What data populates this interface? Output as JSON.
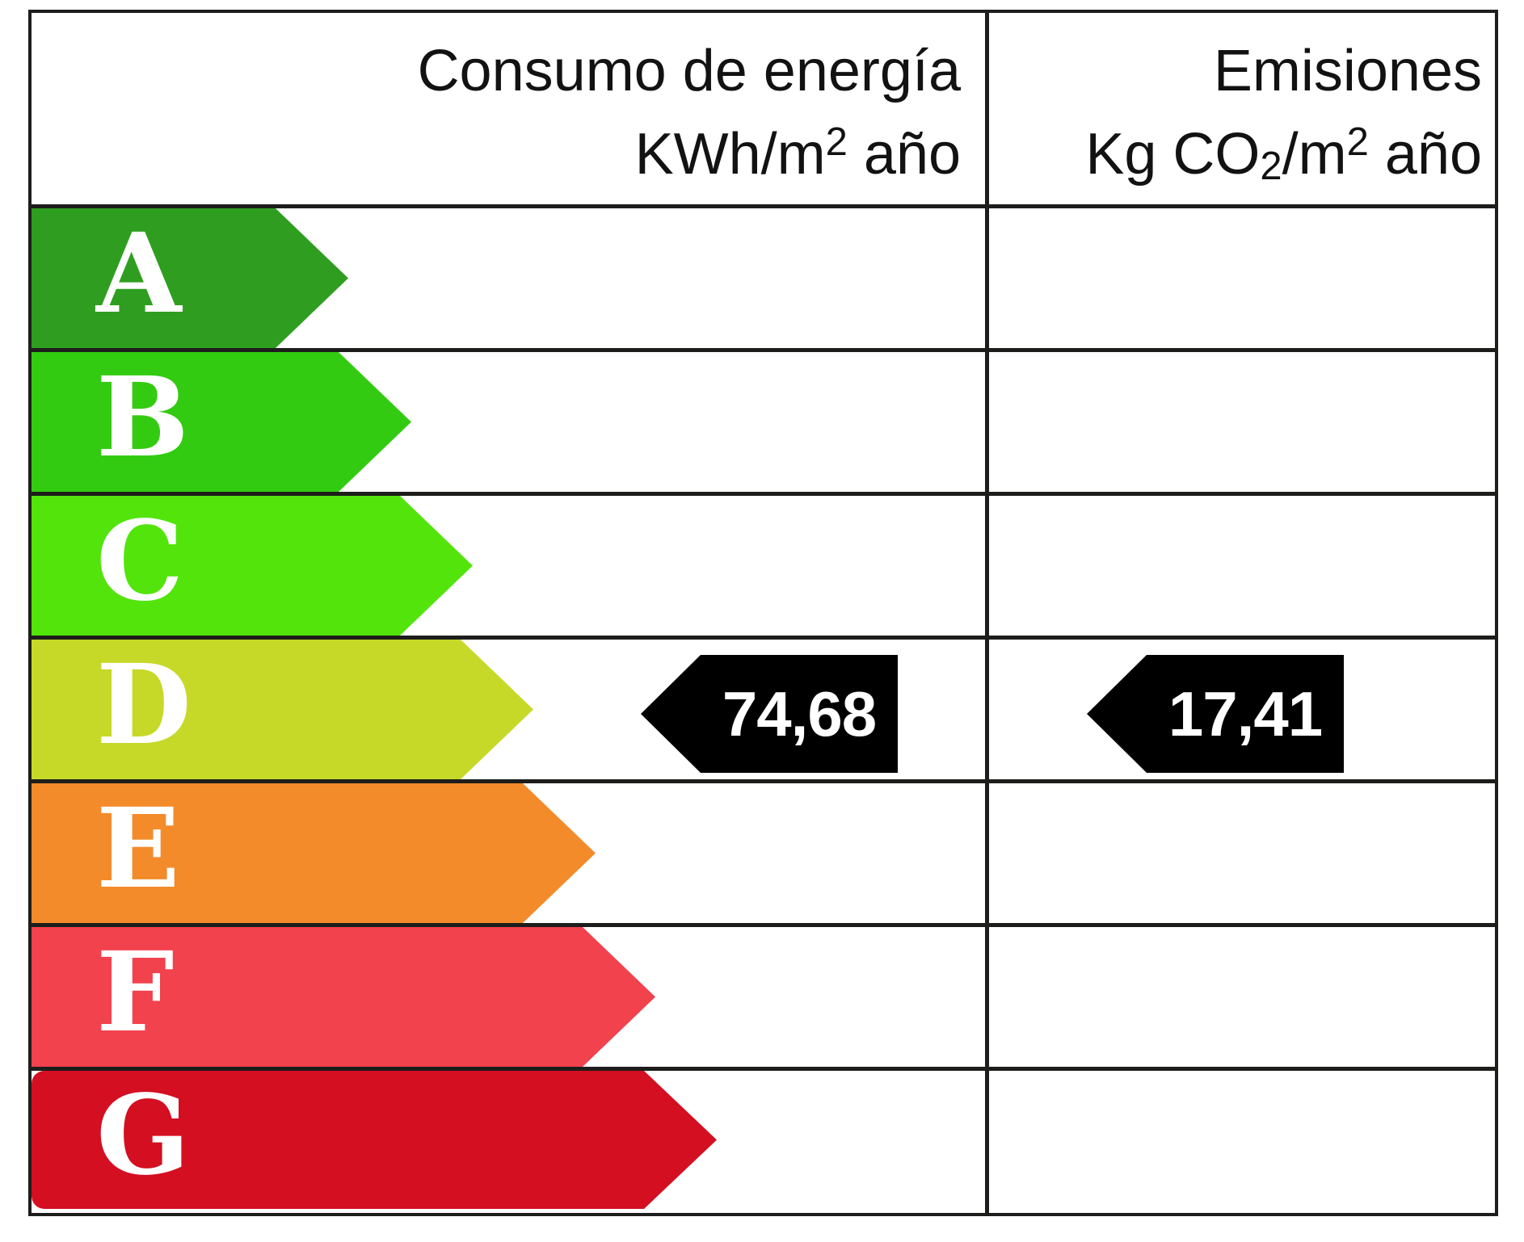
{
  "header": {
    "energy": {
      "line1": "Consumo de energía",
      "line2_base": "KWh/m",
      "line2_sup": "2",
      "line2_rest": " año"
    },
    "emissions": {
      "line1": "Emisiones",
      "line2_a": "Kg CO",
      "line2_sub": "2",
      "line2_b": "/m",
      "line2_sup": "2",
      "line2_c": " año"
    }
  },
  "scale": {
    "grades": [
      {
        "letter": "A",
        "color": "#2f9e20",
        "arrow_width": 392
      },
      {
        "letter": "B",
        "color": "#33cb11",
        "arrow_width": 470
      },
      {
        "letter": "C",
        "color": "#53e40c",
        "arrow_width": 546
      },
      {
        "letter": "D",
        "color": "#c6d928",
        "arrow_width": 621
      },
      {
        "letter": "E",
        "color": "#f38b2b",
        "arrow_width": 698
      },
      {
        "letter": "F",
        "color": "#f2424d",
        "arrow_width": 772
      },
      {
        "letter": "G",
        "color": "#d30f21",
        "arrow_width": 848
      }
    ]
  },
  "rating": {
    "grade": "D",
    "energy_value": "74,68",
    "emissions_value": "17,41",
    "badge_color": "#000000",
    "badge_text_color": "#ffffff"
  },
  "chart_data": {
    "type": "bar",
    "title": "Etiqueta de calificación de eficiencia energética",
    "categories": [
      "A",
      "B",
      "C",
      "D",
      "E",
      "F",
      "G"
    ],
    "bar_colors": [
      "#2f9e20",
      "#33cb11",
      "#53e40c",
      "#c6d928",
      "#f38b2b",
      "#f2424d",
      "#d30f21"
    ],
    "bar_relative_lengths": [
      392,
      470,
      546,
      621,
      698,
      772,
      848
    ],
    "columns": [
      "Consumo de energía KWh/m2 año",
      "Emisiones Kg CO2/m2 año"
    ],
    "rated_grade": "D",
    "series": [
      {
        "name": "Consumo de energía KWh/m2 año",
        "grade": "D",
        "value": 74.68
      },
      {
        "name": "Emisiones Kg CO2/m2 año",
        "grade": "D",
        "value": 17.41
      }
    ],
    "legend_position": "none",
    "grid": false
  }
}
